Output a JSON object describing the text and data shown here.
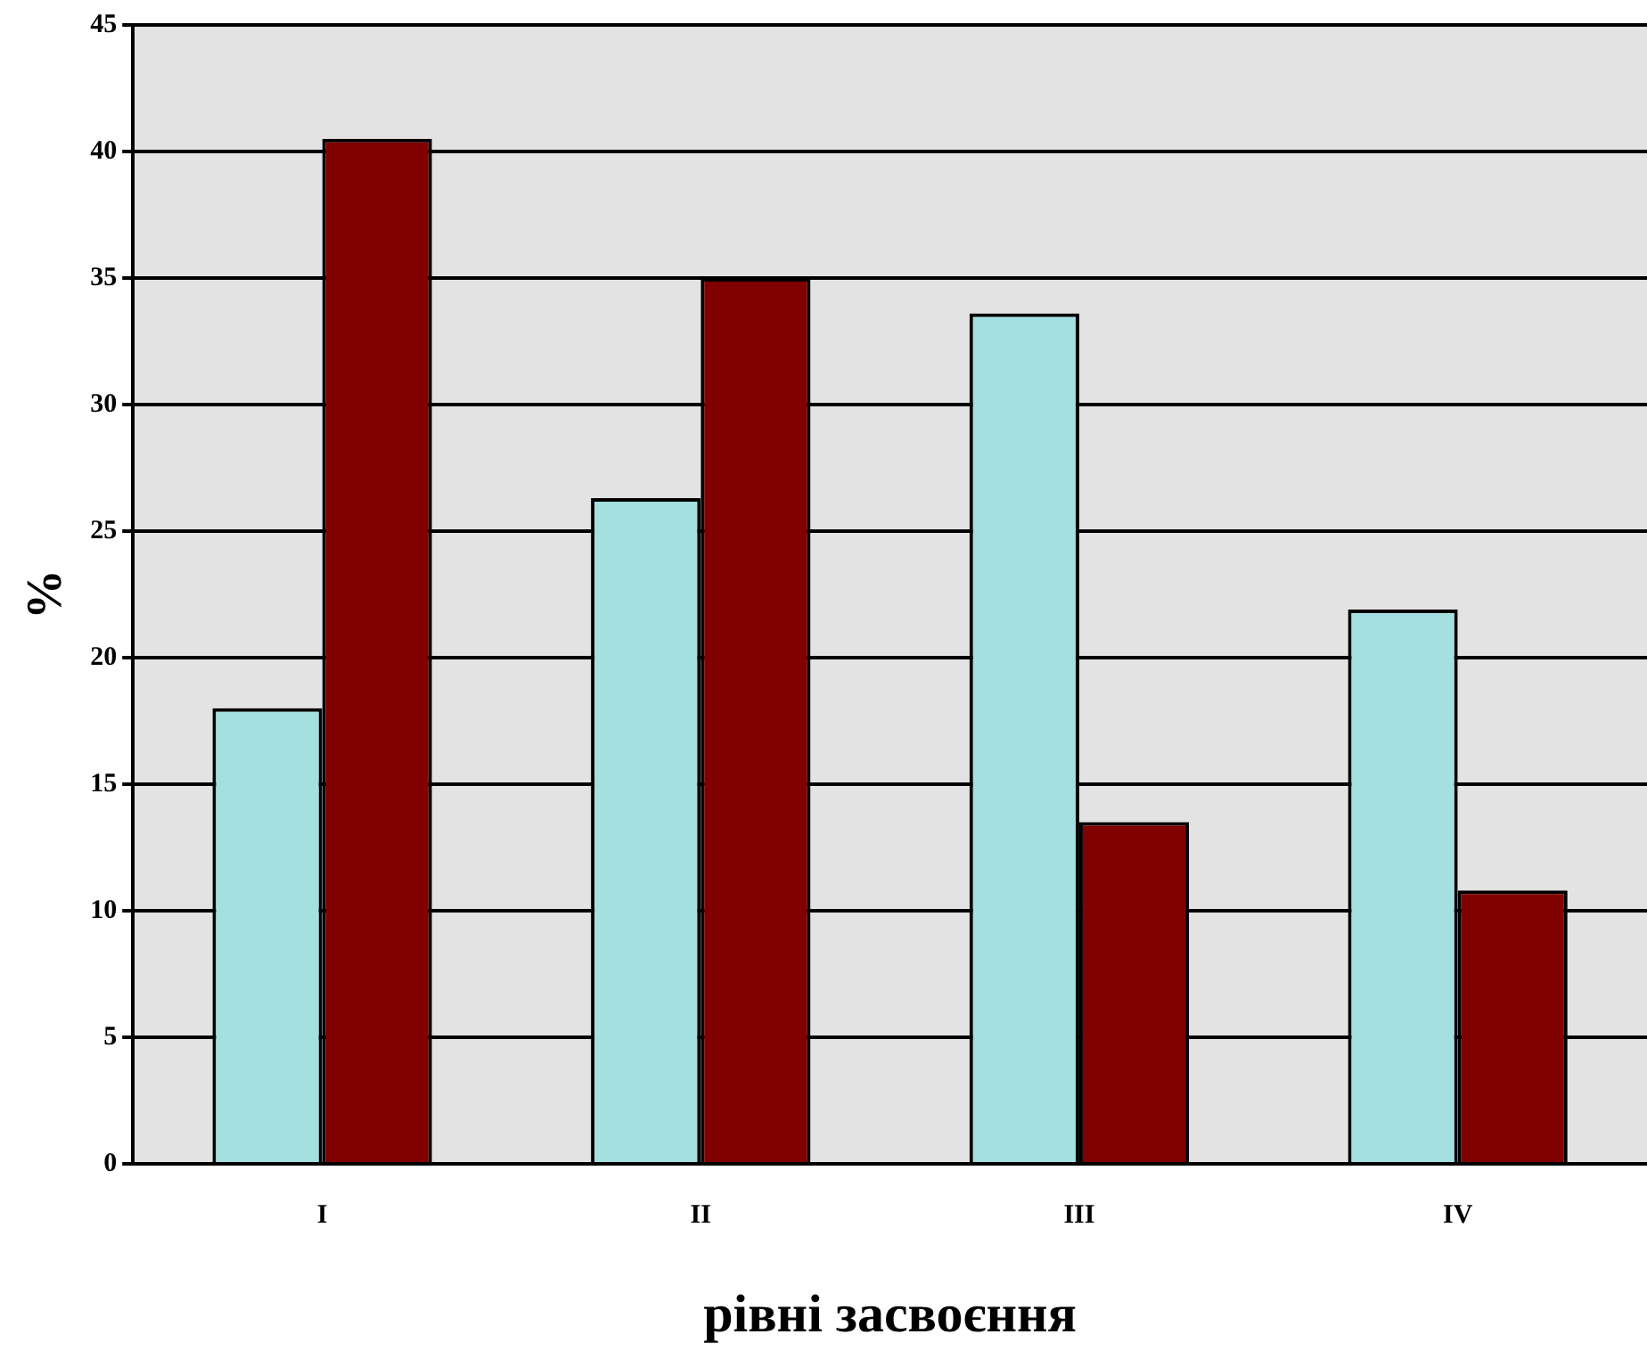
{
  "chart_data": {
    "type": "bar",
    "xlabel": "рівні засвоєння",
    "ylabel": "%",
    "categories": [
      "I",
      "II",
      "III",
      "IV"
    ],
    "series": [
      {
        "color": "#a4e0e0",
        "values": [
          18.0,
          26.3,
          33.6,
          21.9
        ]
      },
      {
        "color": "#800000",
        "values": [
          40.5,
          35.0,
          13.5,
          10.8
        ]
      }
    ],
    "ylim": [
      0,
      45
    ],
    "yticks": [
      0,
      5,
      10,
      15,
      20,
      25,
      30,
      35,
      40,
      45
    ],
    "grid": "y",
    "legend": false
  }
}
